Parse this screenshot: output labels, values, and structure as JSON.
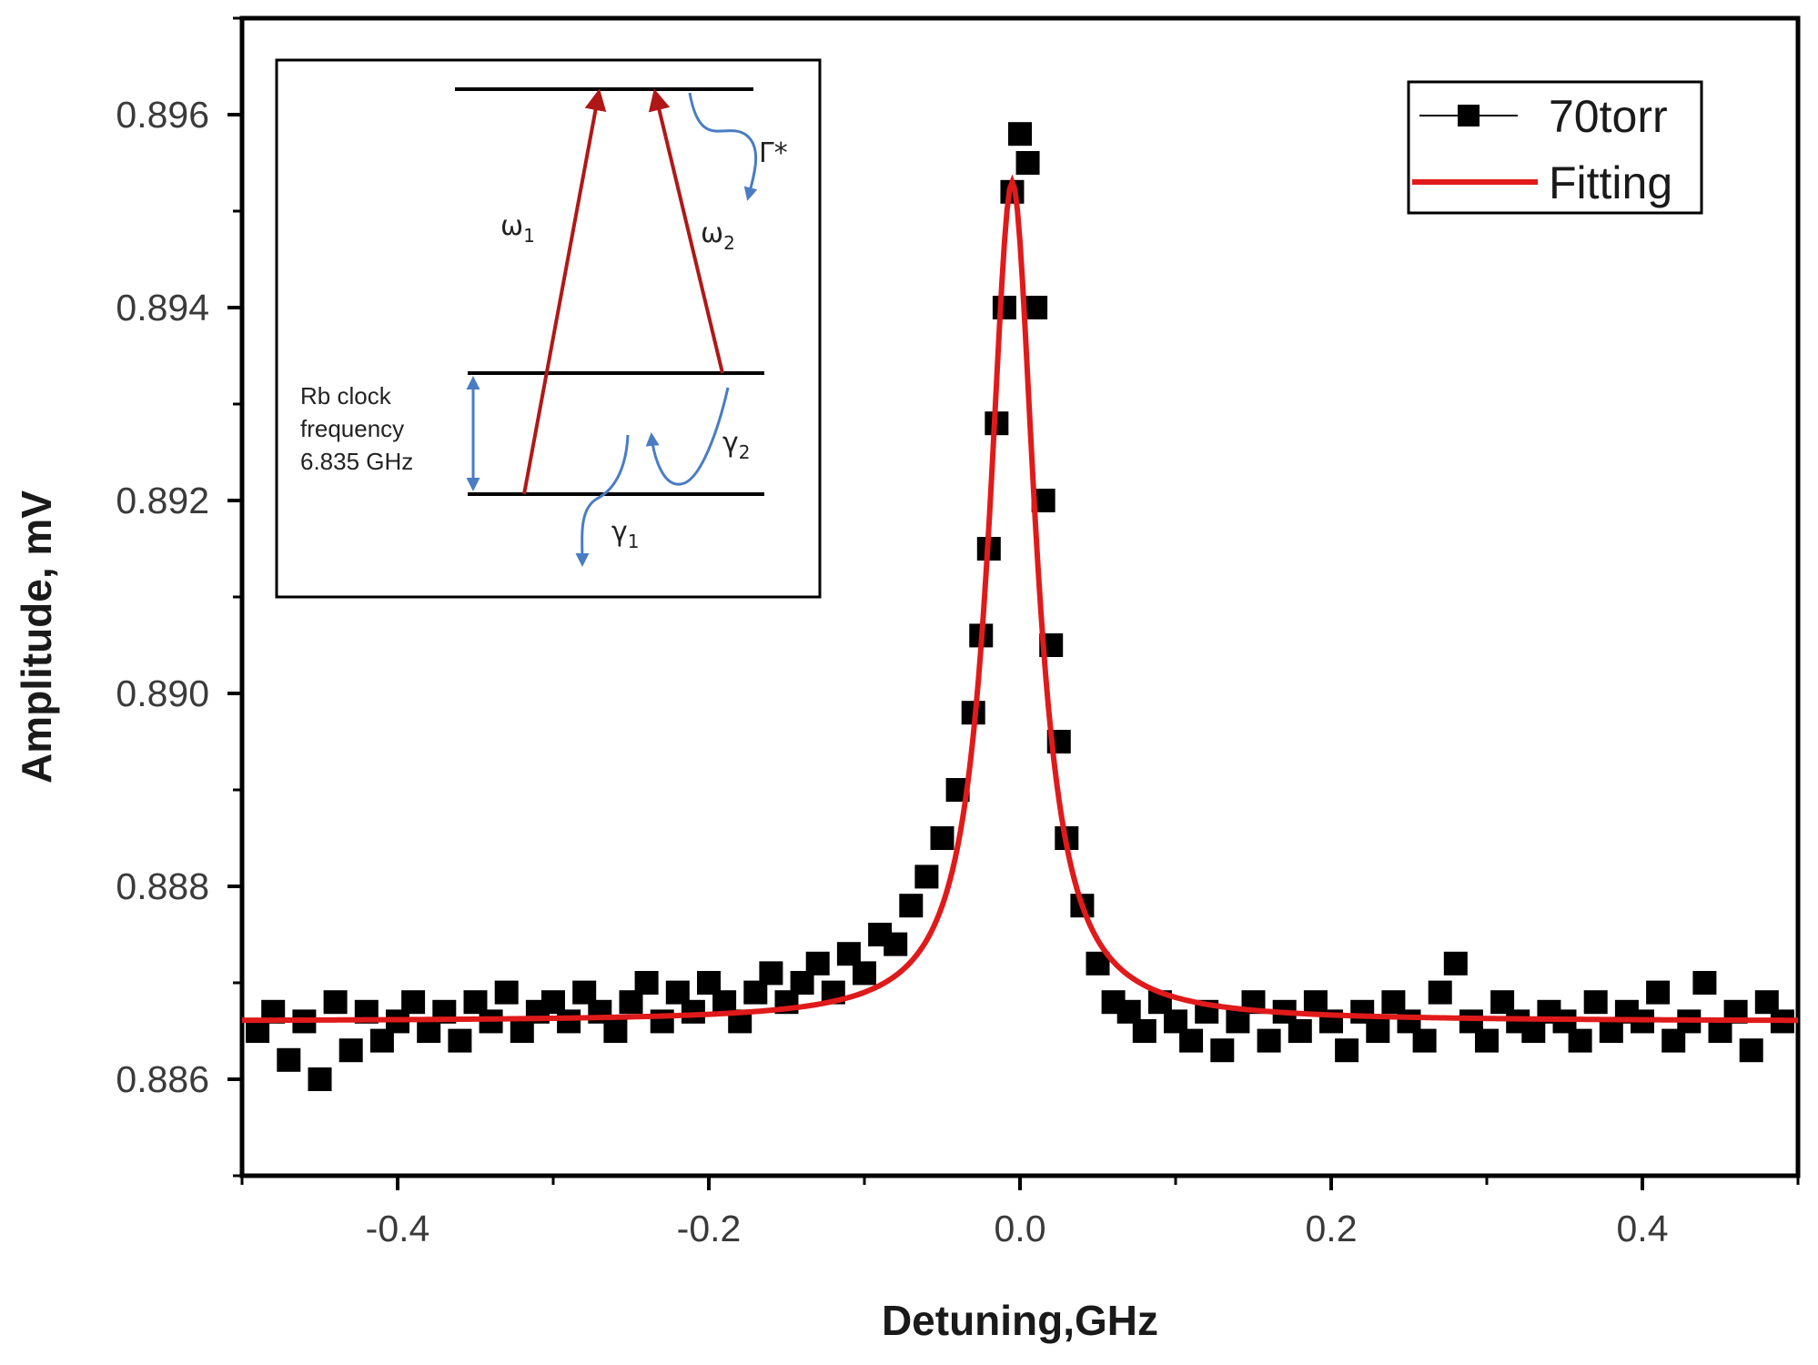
{
  "chart_data": {
    "type": "scatter",
    "xlabel": "Detuning,GHz",
    "ylabel": "Amplitude, mV",
    "xlim": [
      -0.5,
      0.5
    ],
    "ylim": [
      0.885,
      0.897
    ],
    "x_ticks": [
      -0.4,
      -0.2,
      0.0,
      0.2,
      0.4
    ],
    "x_tick_labels": [
      "-0.4",
      "-0.2",
      "0.0",
      "0.2",
      "0.4"
    ],
    "y_ticks": [
      0.886,
      0.888,
      0.89,
      0.892,
      0.894,
      0.896
    ],
    "y_tick_labels": [
      "0.886",
      "0.888",
      "0.890",
      "0.892",
      "0.894",
      "0.896"
    ],
    "grid": false,
    "legend_position": "top-right",
    "series": [
      {
        "name": "70torr",
        "style": "scatter-square",
        "color": "#000000",
        "x": [
          -0.49,
          -0.48,
          -0.47,
          -0.46,
          -0.45,
          -0.44,
          -0.43,
          -0.42,
          -0.41,
          -0.4,
          -0.39,
          -0.38,
          -0.37,
          -0.36,
          -0.35,
          -0.34,
          -0.33,
          -0.32,
          -0.31,
          -0.3,
          -0.29,
          -0.28,
          -0.27,
          -0.26,
          -0.25,
          -0.24,
          -0.23,
          -0.22,
          -0.21,
          -0.2,
          -0.19,
          -0.18,
          -0.17,
          -0.16,
          -0.15,
          -0.14,
          -0.13,
          -0.12,
          -0.11,
          -0.1,
          -0.09,
          -0.08,
          -0.07,
          -0.06,
          -0.05,
          -0.04,
          -0.03,
          -0.025,
          -0.02,
          -0.015,
          -0.01,
          -0.005,
          0.0,
          0.005,
          0.01,
          0.015,
          0.02,
          0.025,
          0.03,
          0.04,
          0.05,
          0.06,
          0.07,
          0.08,
          0.09,
          0.1,
          0.11,
          0.12,
          0.13,
          0.14,
          0.15,
          0.16,
          0.17,
          0.18,
          0.19,
          0.2,
          0.21,
          0.22,
          0.23,
          0.24,
          0.25,
          0.26,
          0.27,
          0.28,
          0.29,
          0.3,
          0.31,
          0.32,
          0.33,
          0.34,
          0.35,
          0.36,
          0.37,
          0.38,
          0.39,
          0.4,
          0.41,
          0.42,
          0.43,
          0.44,
          0.45,
          0.46,
          0.47,
          0.48,
          0.49
        ],
        "y": [
          0.8865,
          0.8867,
          0.8862,
          0.8866,
          0.886,
          0.8868,
          0.8863,
          0.8867,
          0.8864,
          0.8866,
          0.8868,
          0.8865,
          0.8867,
          0.8864,
          0.8868,
          0.8866,
          0.8869,
          0.8865,
          0.8867,
          0.8868,
          0.8866,
          0.8869,
          0.8867,
          0.8865,
          0.8868,
          0.887,
          0.8866,
          0.8869,
          0.8867,
          0.887,
          0.8868,
          0.8866,
          0.8869,
          0.8871,
          0.8868,
          0.887,
          0.8872,
          0.8869,
          0.8873,
          0.8871,
          0.8875,
          0.8874,
          0.8878,
          0.8881,
          0.8885,
          0.889,
          0.8898,
          0.8906,
          0.8915,
          0.8928,
          0.894,
          0.8952,
          0.8958,
          0.8955,
          0.894,
          0.892,
          0.8905,
          0.8895,
          0.8885,
          0.8878,
          0.8872,
          0.8868,
          0.8867,
          0.8865,
          0.8868,
          0.8866,
          0.8864,
          0.8867,
          0.8863,
          0.8866,
          0.8868,
          0.8864,
          0.8867,
          0.8865,
          0.8868,
          0.8866,
          0.8863,
          0.8867,
          0.8865,
          0.8868,
          0.8866,
          0.8864,
          0.8869,
          0.8872,
          0.8866,
          0.8864,
          0.8868,
          0.8866,
          0.8865,
          0.8867,
          0.8866,
          0.8864,
          0.8868,
          0.8865,
          0.8867,
          0.8866,
          0.8869,
          0.8864,
          0.8866,
          0.887,
          0.8865,
          0.8867,
          0.8863,
          0.8868,
          0.8866
        ]
      },
      {
        "name": "Fitting",
        "style": "line",
        "color": "#e01a1a",
        "model": "lorentzian",
        "baseline": 0.8866,
        "amplitude": 0.0087,
        "center": -0.005,
        "hwhm": 0.018
      }
    ],
    "inset": {
      "labels": {
        "omega1": "ω",
        "omega1_sub": "1",
        "omega2": "ω",
        "omega2_sub": "2",
        "gamma_star": "Γ*",
        "gamma1": "γ",
        "gamma1_sub": "1",
        "gamma2": "γ",
        "gamma2_sub": "2",
        "rb_line1": "Rb clock",
        "rb_line2": "frequency",
        "rb_line3": "6.835 GHz"
      },
      "colors": {
        "laser": "#b01818",
        "decay": "#4a7cc4",
        "level": "#000000"
      }
    }
  }
}
